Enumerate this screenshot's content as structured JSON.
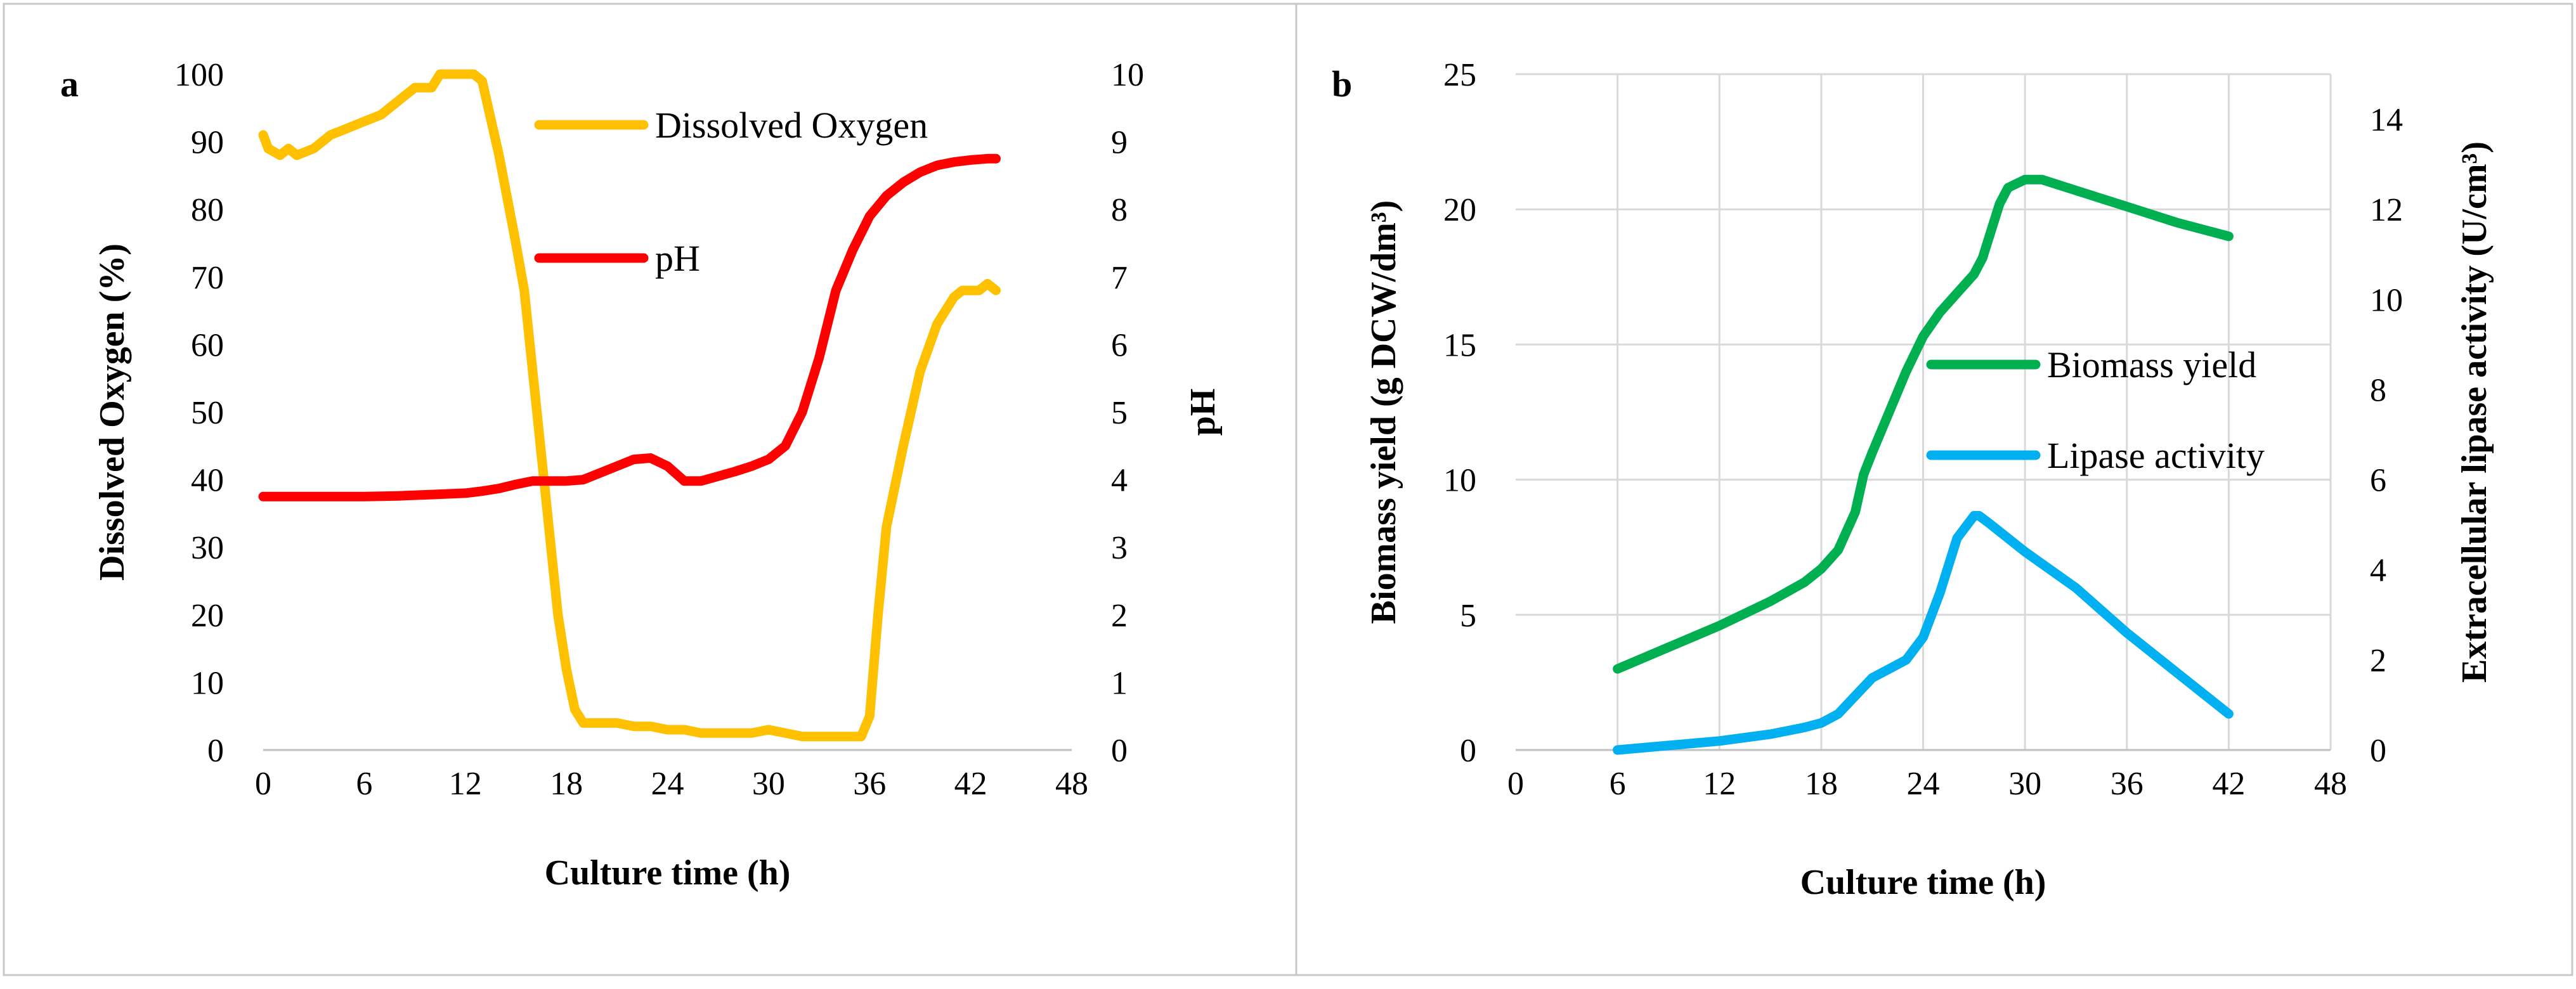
{
  "chart_data": [
    {
      "type": "line",
      "panel_label": "a",
      "xlabel": "Culture time (h)",
      "ylabel_left": "Dissolved Oxygen (%)",
      "ylabel_right": "pH",
      "xlim": [
        0,
        48
      ],
      "xticks": [
        0,
        6,
        12,
        18,
        24,
        30,
        36,
        42,
        48
      ],
      "ylim_left": [
        0,
        100
      ],
      "yticks_left": [
        0,
        10,
        20,
        30,
        40,
        50,
        60,
        70,
        80,
        90,
        100
      ],
      "ylim_right": [
        0,
        10
      ],
      "yticks_right": [
        0,
        1,
        2,
        3,
        4,
        5,
        6,
        7,
        8,
        9,
        10
      ],
      "grid": false,
      "legend": "top-center",
      "series": [
        {
          "name": "Dissolved Oxygen",
          "axis": "left",
          "color": "#FFC000",
          "x": [
            0,
            0.3,
            1,
            1.5,
            2,
            3,
            4,
            5,
            6,
            7,
            8,
            9,
            10,
            10.5,
            11,
            12,
            12.5,
            13,
            14,
            15,
            15.5,
            16,
            16.5,
            17,
            17.5,
            18,
            18.5,
            19,
            20,
            21,
            22,
            23,
            24,
            25,
            26,
            27,
            28,
            29,
            30,
            31,
            32,
            33,
            34,
            35,
            35.5,
            36,
            36.5,
            37,
            38,
            39,
            40,
            41,
            41.5,
            42,
            42.5,
            43,
            43.5
          ],
          "y": [
            91,
            89,
            88,
            89,
            88,
            89,
            91,
            92,
            93,
            94,
            96,
            98,
            98,
            100,
            100,
            100,
            100,
            99,
            88,
            75,
            68,
            56,
            44,
            32,
            20,
            12,
            6,
            4,
            4,
            4,
            3.5,
            3.5,
            3,
            3,
            2.5,
            2.5,
            2.5,
            2.5,
            3,
            2.5,
            2,
            2,
            2,
            2,
            2,
            5,
            20,
            33,
            45,
            56,
            63,
            67,
            68,
            68,
            68,
            69,
            68
          ]
        },
        {
          "name": "pH",
          "axis": "right",
          "color": "#FF0000",
          "x": [
            0,
            2,
            4,
            6,
            8,
            10,
            12,
            13,
            14,
            15,
            16,
            17,
            18,
            19,
            20,
            21,
            22,
            23,
            24,
            25,
            26,
            27,
            28,
            29,
            30,
            31,
            32,
            33,
            34,
            35,
            36,
            37,
            38,
            39,
            40,
            41,
            42,
            43,
            43.5
          ],
          "y": [
            3.75,
            3.75,
            3.75,
            3.75,
            3.76,
            3.78,
            3.8,
            3.83,
            3.87,
            3.93,
            3.98,
            3.98,
            3.98,
            4.0,
            4.1,
            4.2,
            4.3,
            4.32,
            4.2,
            3.98,
            3.98,
            4.05,
            4.12,
            4.2,
            4.3,
            4.5,
            5.0,
            5.8,
            6.8,
            7.4,
            7.9,
            8.2,
            8.4,
            8.55,
            8.65,
            8.7,
            8.73,
            8.75,
            8.75
          ]
        }
      ]
    },
    {
      "type": "line",
      "panel_label": "b",
      "xlabel": "Culture time (h)",
      "ylabel_left": "Biomass yield (g DCW/dm³)",
      "ylabel_right": "Extracellular lipase activity (U/cm³)",
      "xlim": [
        0,
        48
      ],
      "xticks": [
        0,
        6,
        12,
        18,
        24,
        30,
        36,
        42,
        48
      ],
      "ylim_left": [
        0,
        25
      ],
      "yticks_left": [
        0,
        5,
        10,
        15,
        20,
        25
      ],
      "ylim_right": [
        0,
        15
      ],
      "yticks_right": [
        0,
        2,
        4,
        6,
        8,
        10,
        12,
        14
      ],
      "grid": true,
      "legend": "center-right",
      "series": [
        {
          "name": "Biomass yield",
          "axis": "left",
          "color": "#00B050",
          "x": [
            6,
            9,
            12,
            15,
            17,
            18,
            19,
            20,
            20.5,
            21,
            22,
            23,
            24,
            25,
            26,
            27,
            27.5,
            28,
            28.5,
            29,
            30,
            31,
            33,
            36,
            39,
            42
          ],
          "y": [
            3.0,
            3.8,
            4.6,
            5.5,
            6.2,
            6.7,
            7.4,
            8.8,
            10.2,
            11.0,
            12.5,
            14.0,
            15.3,
            16.2,
            16.9,
            17.6,
            18.2,
            19.2,
            20.2,
            20.8,
            21.1,
            21.1,
            20.7,
            20.1,
            19.5,
            19.0
          ]
        },
        {
          "name": "Lipase activity",
          "axis": "right",
          "color": "#00B0F0",
          "x": [
            6,
            9,
            12,
            15,
            17,
            18,
            19,
            20,
            21,
            22,
            23,
            24,
            25,
            26,
            27,
            27.3,
            28,
            29,
            30,
            33,
            36,
            39,
            42
          ],
          "y": [
            0.0,
            0.1,
            0.2,
            0.35,
            0.5,
            0.6,
            0.8,
            1.2,
            1.6,
            1.8,
            2.0,
            2.5,
            3.5,
            4.7,
            5.2,
            5.2,
            5.0,
            4.7,
            4.4,
            3.6,
            2.6,
            1.7,
            0.8
          ]
        }
      ]
    }
  ]
}
